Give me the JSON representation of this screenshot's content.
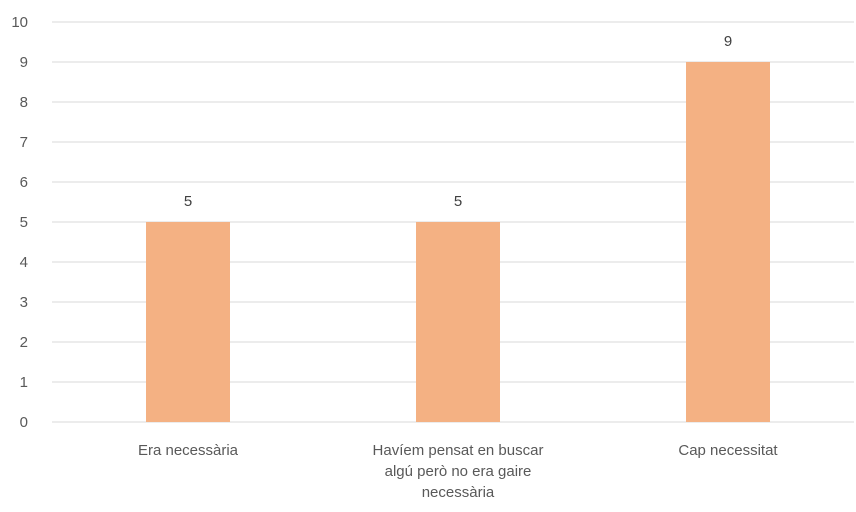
{
  "chart_data": {
    "type": "bar",
    "categories": [
      [
        "Era necessària"
      ],
      [
        "Havíem pensat en buscar",
        "algú però no era gaire",
        "necessària"
      ],
      [
        "Cap necessitat"
      ]
    ],
    "values": [
      5,
      5,
      9
    ],
    "data_labels": [
      "5",
      "5",
      "9"
    ],
    "yticks": [
      "0",
      "1",
      "2",
      "3",
      "4",
      "5",
      "6",
      "7",
      "8",
      "9",
      "10"
    ],
    "ylim": [
      0,
      10
    ],
    "grid": true,
    "legend": "none",
    "bar_color": "#f4b183",
    "title": "",
    "xlabel": "",
    "ylabel": ""
  }
}
